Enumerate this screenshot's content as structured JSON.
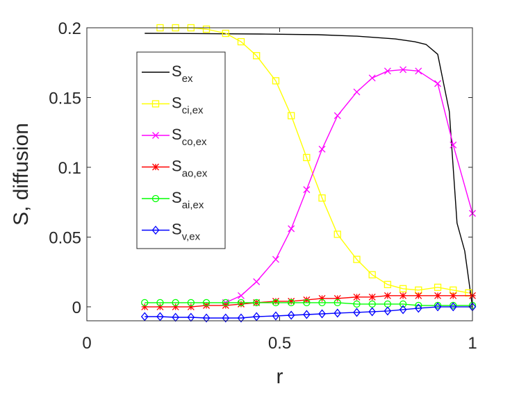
{
  "chart_data": {
    "type": "line",
    "title": "",
    "xlabel": "r",
    "ylabel": "S, diffusion",
    "xlim": [
      0,
      1
    ],
    "ylim": [
      -0.01,
      0.2
    ],
    "xticks": [
      0,
      0.5,
      1
    ],
    "xtick_labels": [
      "0",
      "0.5",
      "1"
    ],
    "yticks": [
      0,
      0.05,
      0.1,
      0.15,
      0.2
    ],
    "ytick_labels": [
      "0",
      "0.05",
      "0.1",
      "0.15",
      "0.2"
    ],
    "grid": false,
    "legend_position": "top-left",
    "series": [
      {
        "name": "S_ex",
        "label_main": "S",
        "label_sub": "ex",
        "color": "#000000",
        "marker": "none",
        "x": [
          0.15,
          0.3,
          0.45,
          0.6,
          0.7,
          0.75,
          0.8,
          0.85,
          0.88,
          0.91,
          0.94,
          0.96,
          0.98,
          1.0
        ],
        "y": [
          0.196,
          0.1958,
          0.1955,
          0.195,
          0.194,
          0.193,
          0.192,
          0.19,
          0.188,
          0.181,
          0.14,
          0.06,
          0.04,
          0.0
        ]
      },
      {
        "name": "S_ci,ex",
        "label_main": "S",
        "label_sub": "ci,ex",
        "color": "#ffff00",
        "marker": "square",
        "x": [
          0.19,
          0.23,
          0.27,
          0.31,
          0.36,
          0.4,
          0.44,
          0.49,
          0.53,
          0.57,
          0.61,
          0.65,
          0.7,
          0.74,
          0.78,
          0.82,
          0.86,
          0.91,
          0.95,
          0.99
        ],
        "y": [
          0.2,
          0.2,
          0.2,
          0.199,
          0.196,
          0.19,
          0.18,
          0.162,
          0.137,
          0.107,
          0.078,
          0.052,
          0.034,
          0.023,
          0.016,
          0.013,
          0.012,
          0.014,
          0.012,
          0.01
        ]
      },
      {
        "name": "S_co,ex",
        "label_main": "S",
        "label_sub": "co,ex",
        "color": "#ff00ff",
        "marker": "x",
        "x": [
          0.36,
          0.4,
          0.44,
          0.49,
          0.53,
          0.57,
          0.61,
          0.65,
          0.7,
          0.74,
          0.78,
          0.82,
          0.86,
          0.91,
          0.95,
          1.0
        ],
        "y": [
          0.003,
          0.008,
          0.018,
          0.034,
          0.056,
          0.084,
          0.113,
          0.137,
          0.154,
          0.164,
          0.169,
          0.17,
          0.169,
          0.16,
          0.116,
          0.067
        ]
      },
      {
        "name": "S_ao,ex",
        "label_main": "S",
        "label_sub": "ao,ex",
        "color": "#ff0000",
        "marker": "star",
        "x": [
          0.15,
          0.19,
          0.23,
          0.27,
          0.31,
          0.36,
          0.4,
          0.44,
          0.49,
          0.53,
          0.57,
          0.61,
          0.65,
          0.7,
          0.74,
          0.78,
          0.82,
          0.86,
          0.91,
          0.95,
          1.0
        ],
        "y": [
          0.0,
          0.0,
          0.0,
          0.0,
          0.001,
          0.001,
          0.002,
          0.003,
          0.004,
          0.004,
          0.005,
          0.006,
          0.006,
          0.007,
          0.007,
          0.008,
          0.008,
          0.008,
          0.008,
          0.008,
          0.008
        ]
      },
      {
        "name": "S_ai,ex",
        "label_main": "S",
        "label_sub": "ai,ex",
        "color": "#00ff00",
        "marker": "circle",
        "x": [
          0.15,
          0.19,
          0.23,
          0.27,
          0.31,
          0.36,
          0.4,
          0.44,
          0.49,
          0.53,
          0.57,
          0.61,
          0.65,
          0.7,
          0.74,
          0.78,
          0.82,
          0.86,
          0.91,
          0.95,
          1.0
        ],
        "y": [
          0.003,
          0.003,
          0.003,
          0.003,
          0.003,
          0.003,
          0.003,
          0.003,
          0.003,
          0.003,
          0.003,
          0.003,
          0.003,
          0.002,
          0.002,
          0.002,
          0.002,
          0.001,
          0.001,
          0.001,
          0.001
        ]
      },
      {
        "name": "S_v,ex",
        "label_main": "S",
        "label_sub": "v,ex",
        "color": "#0000ff",
        "marker": "diamond",
        "x": [
          0.15,
          0.19,
          0.23,
          0.27,
          0.31,
          0.36,
          0.4,
          0.44,
          0.49,
          0.53,
          0.57,
          0.61,
          0.65,
          0.7,
          0.74,
          0.78,
          0.82,
          0.86,
          0.91,
          0.95,
          1.0
        ],
        "y": [
          -0.007,
          -0.007,
          -0.0075,
          -0.0075,
          -0.008,
          -0.008,
          -0.008,
          -0.007,
          -0.0065,
          -0.006,
          -0.0055,
          -0.005,
          -0.0045,
          -0.004,
          -0.0035,
          -0.003,
          -0.002,
          -0.001,
          0.0,
          0.0,
          0.0
        ]
      }
    ]
  }
}
